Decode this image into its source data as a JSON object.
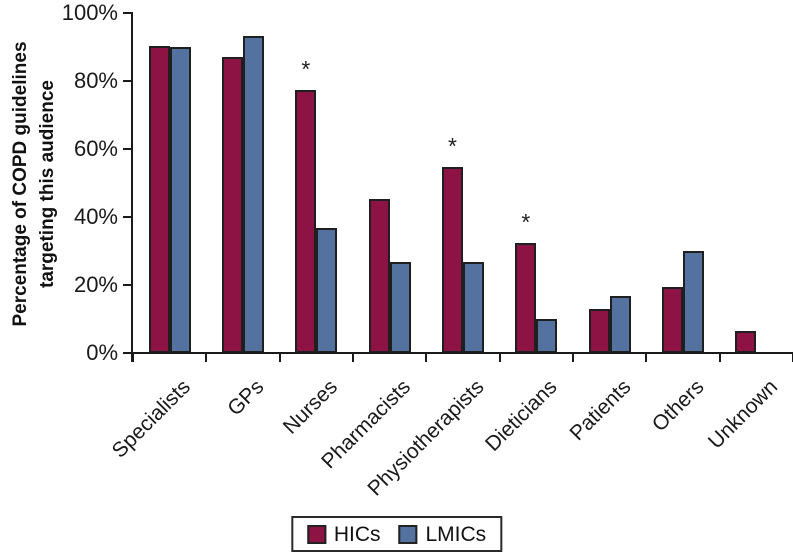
{
  "chart_data": {
    "type": "bar",
    "title": "",
    "ylabel_line1": "Percentage of COPD guidelines",
    "ylabel_line2": "targeting this audience",
    "categories": [
      "Specialists",
      "GPs",
      "Nurses",
      "Pharmacists",
      "Physiotherapists",
      "Dieticians",
      "Patients",
      "Others",
      "Unknown"
    ],
    "series": [
      {
        "name": "HICs",
        "color": "#8C1343",
        "values": [
          90.3,
          87.1,
          77.4,
          45.2,
          54.8,
          32.3,
          12.9,
          19.4,
          6.5
        ]
      },
      {
        "name": "LMICs",
        "color": "#53729F",
        "values": [
          90.0,
          93.3,
          36.7,
          26.7,
          26.7,
          10.0,
          16.7,
          30.0,
          0
        ]
      }
    ],
    "significance": {
      "symbol": "*",
      "on_series": "HICs",
      "category_indices": [
        2,
        4,
        5
      ]
    },
    "y_axis": {
      "ticks": [
        0,
        20,
        40,
        60,
        80,
        100
      ],
      "tick_suffix": "%",
      "ylim": [
        0,
        100
      ]
    },
    "grid": false,
    "legend_position": "bottom-center",
    "bar_outline_color": "#1f1f1f",
    "axis_color": "#1a1a1a"
  }
}
